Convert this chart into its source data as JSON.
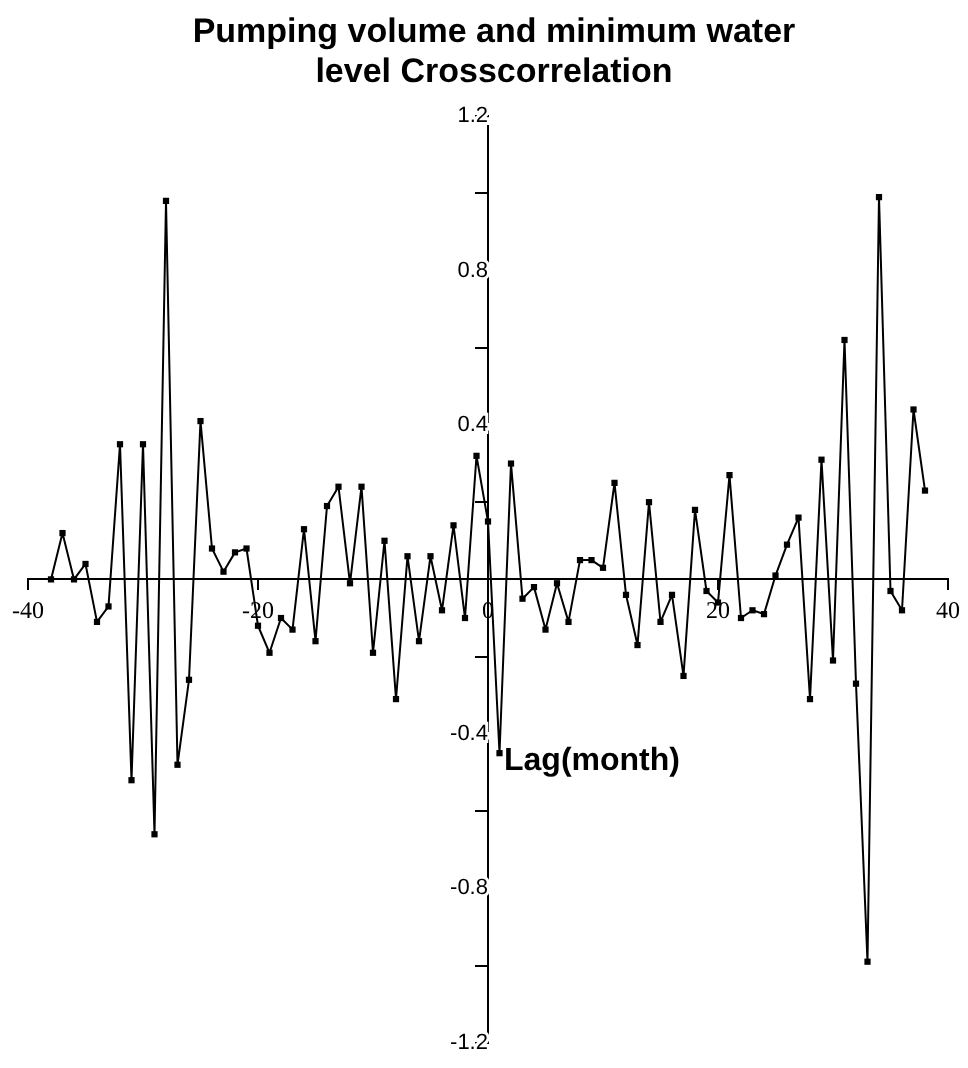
{
  "chart_data": {
    "type": "line",
    "title": "Pumping volume and minimum water level Crosscorrelation",
    "xlabel": "Lag(month)",
    "x": [
      -38,
      -37,
      -36,
      -35,
      -34,
      -33,
      -32,
      -31,
      -30,
      -29,
      -28,
      -27,
      -26,
      -25,
      -24,
      -23,
      -22,
      -21,
      -20,
      -19,
      -18,
      -17,
      -16,
      -15,
      -14,
      -13,
      -12,
      -11,
      -10,
      -9,
      -8,
      -7,
      -6,
      -5,
      -4,
      -3,
      -2,
      -1,
      0,
      1,
      2,
      3,
      4,
      5,
      6,
      7,
      8,
      9,
      10,
      11,
      12,
      13,
      14,
      15,
      16,
      17,
      18,
      19,
      20,
      21,
      22,
      23,
      24,
      25,
      26,
      27,
      28,
      29,
      30,
      31,
      32,
      33,
      34,
      35,
      36,
      37,
      38
    ],
    "series": [
      {
        "color": "#000000",
        "values": [
          0.0,
          0.12,
          0.0,
          0.04,
          -0.11,
          -0.07,
          0.35,
          -0.52,
          0.35,
          -0.66,
          0.98,
          -0.48,
          -0.26,
          0.41,
          0.08,
          0.02,
          0.07,
          0.08,
          -0.12,
          -0.19,
          -0.1,
          -0.13,
          0.13,
          -0.16,
          0.19,
          0.24,
          -0.01,
          0.24,
          -0.19,
          0.1,
          -0.31,
          0.06,
          -0.16,
          0.06,
          -0.08,
          0.14,
          -0.1,
          0.32,
          0.15,
          -0.45,
          0.3,
          -0.05,
          -0.02,
          -0.13,
          -0.01,
          -0.11,
          0.05,
          0.05,
          0.03,
          0.25,
          -0.04,
          -0.17,
          0.2,
          -0.11,
          -0.04,
          -0.25,
          0.18,
          -0.03,
          -0.06,
          0.27,
          -0.1,
          -0.08,
          -0.09,
          0.01,
          0.09,
          0.16,
          -0.31,
          0.31,
          -0.21,
          0.62,
          -0.27,
          -0.99,
          0.99,
          -0.03,
          -0.08,
          0.44,
          0.23
        ]
      }
    ],
    "xlim": [
      -40,
      40
    ],
    "ylim": [
      -1.2,
      1.2
    ],
    "xticks": [
      -40,
      -20,
      0,
      20,
      40
    ],
    "yticks": [
      -1.2,
      {
        "value": -1.0,
        "label": null
      },
      -0.8,
      {
        "value": -0.6,
        "label": null
      },
      -0.4,
      {
        "value": -0.2,
        "label": null
      },
      {
        "value": 0,
        "label": null
      },
      {
        "value": 0.2,
        "label": null
      },
      0.4,
      {
        "value": 0.6,
        "label": null
      },
      0.8,
      {
        "value": 1.0,
        "label": null
      },
      1.2
    ],
    "grid": false,
    "legend": false,
    "marker": "square",
    "line_style": "solid"
  }
}
